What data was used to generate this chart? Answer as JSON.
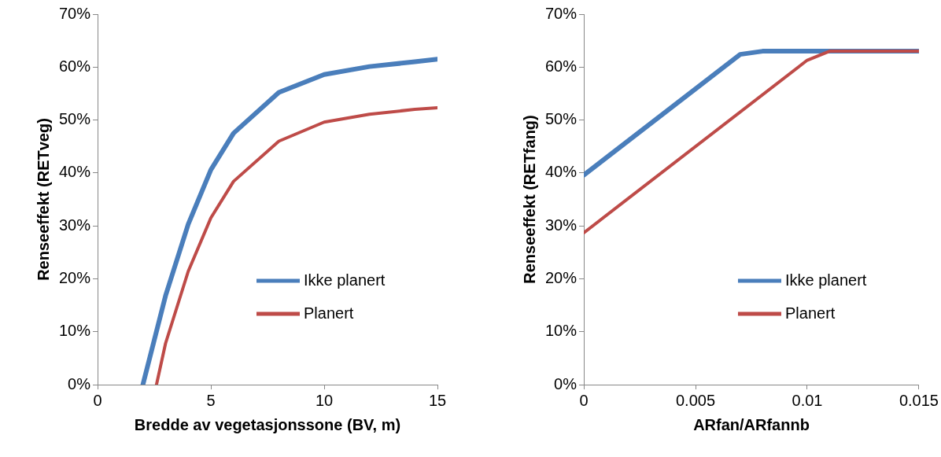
{
  "chart_data": [
    {
      "type": "line",
      "xlabel": "Bredde av vegetasjonssone (BV, m)",
      "ylabel": "Renseeffekt (RETveg)",
      "xlim": [
        0,
        15
      ],
      "xticks": [
        0,
        5,
        10,
        15
      ],
      "ylim": [
        0,
        70
      ],
      "yticks": [
        {
          "value": 0,
          "label": "0%"
        },
        {
          "value": 10,
          "label": "10%"
        },
        {
          "value": 20,
          "label": "20%"
        },
        {
          "value": 30,
          "label": "30%"
        },
        {
          "value": 40,
          "label": "40%"
        },
        {
          "value": 50,
          "label": "50%"
        },
        {
          "value": 60,
          "label": "60%"
        },
        {
          "value": 70,
          "label": "70%"
        }
      ],
      "grid": false,
      "legend": "bottom right",
      "marker": "none",
      "line_style": "solid",
      "series": [
        {
          "name": "Ikke planert",
          "color": "#4a7ebb",
          "x": [
            2,
            3,
            4,
            5,
            6,
            8,
            10,
            12,
            14,
            15
          ],
          "values": [
            0,
            16.8,
            30.3,
            40.6,
            47.5,
            55.2,
            58.6,
            60.1,
            61,
            61.5
          ]
        },
        {
          "name": "Planert",
          "color": "#be4b48",
          "x": [
            2.6,
            3,
            4,
            5,
            6,
            8,
            10,
            12,
            14,
            15
          ],
          "values": [
            0,
            7.8,
            21.4,
            31.5,
            38.4,
            46,
            49.6,
            51.1,
            52,
            52.3
          ]
        }
      ]
    },
    {
      "type": "line",
      "xlabel": "ARfan/ARfannb",
      "ylabel": "Renseeffekt (RETfang)",
      "xlim": [
        0,
        0.015
      ],
      "xticks": [
        0,
        0.005,
        0.01,
        0.015
      ],
      "ylim": [
        0,
        70
      ],
      "yticks": [
        {
          "value": 0,
          "label": "0%"
        },
        {
          "value": 10,
          "label": "10%"
        },
        {
          "value": 20,
          "label": "20%"
        },
        {
          "value": 30,
          "label": "30%"
        },
        {
          "value": 40,
          "label": "40%"
        },
        {
          "value": 50,
          "label": "50%"
        },
        {
          "value": 60,
          "label": "60%"
        },
        {
          "value": 70,
          "label": "70%"
        }
      ],
      "grid": false,
      "legend": "bottom right",
      "marker": "none",
      "line_style": "solid",
      "series": [
        {
          "name": "Ikke planert",
          "color": "#4a7ebb",
          "x": [
            0,
            0.007,
            0.008,
            0.011,
            0.015
          ],
          "values": [
            39.6,
            62.4,
            63,
            63,
            63
          ]
        },
        {
          "name": "Planert",
          "color": "#be4b48",
          "x": [
            0,
            0.01,
            0.011,
            0.015
          ],
          "values": [
            28.7,
            61.3,
            63,
            63
          ]
        }
      ]
    }
  ]
}
